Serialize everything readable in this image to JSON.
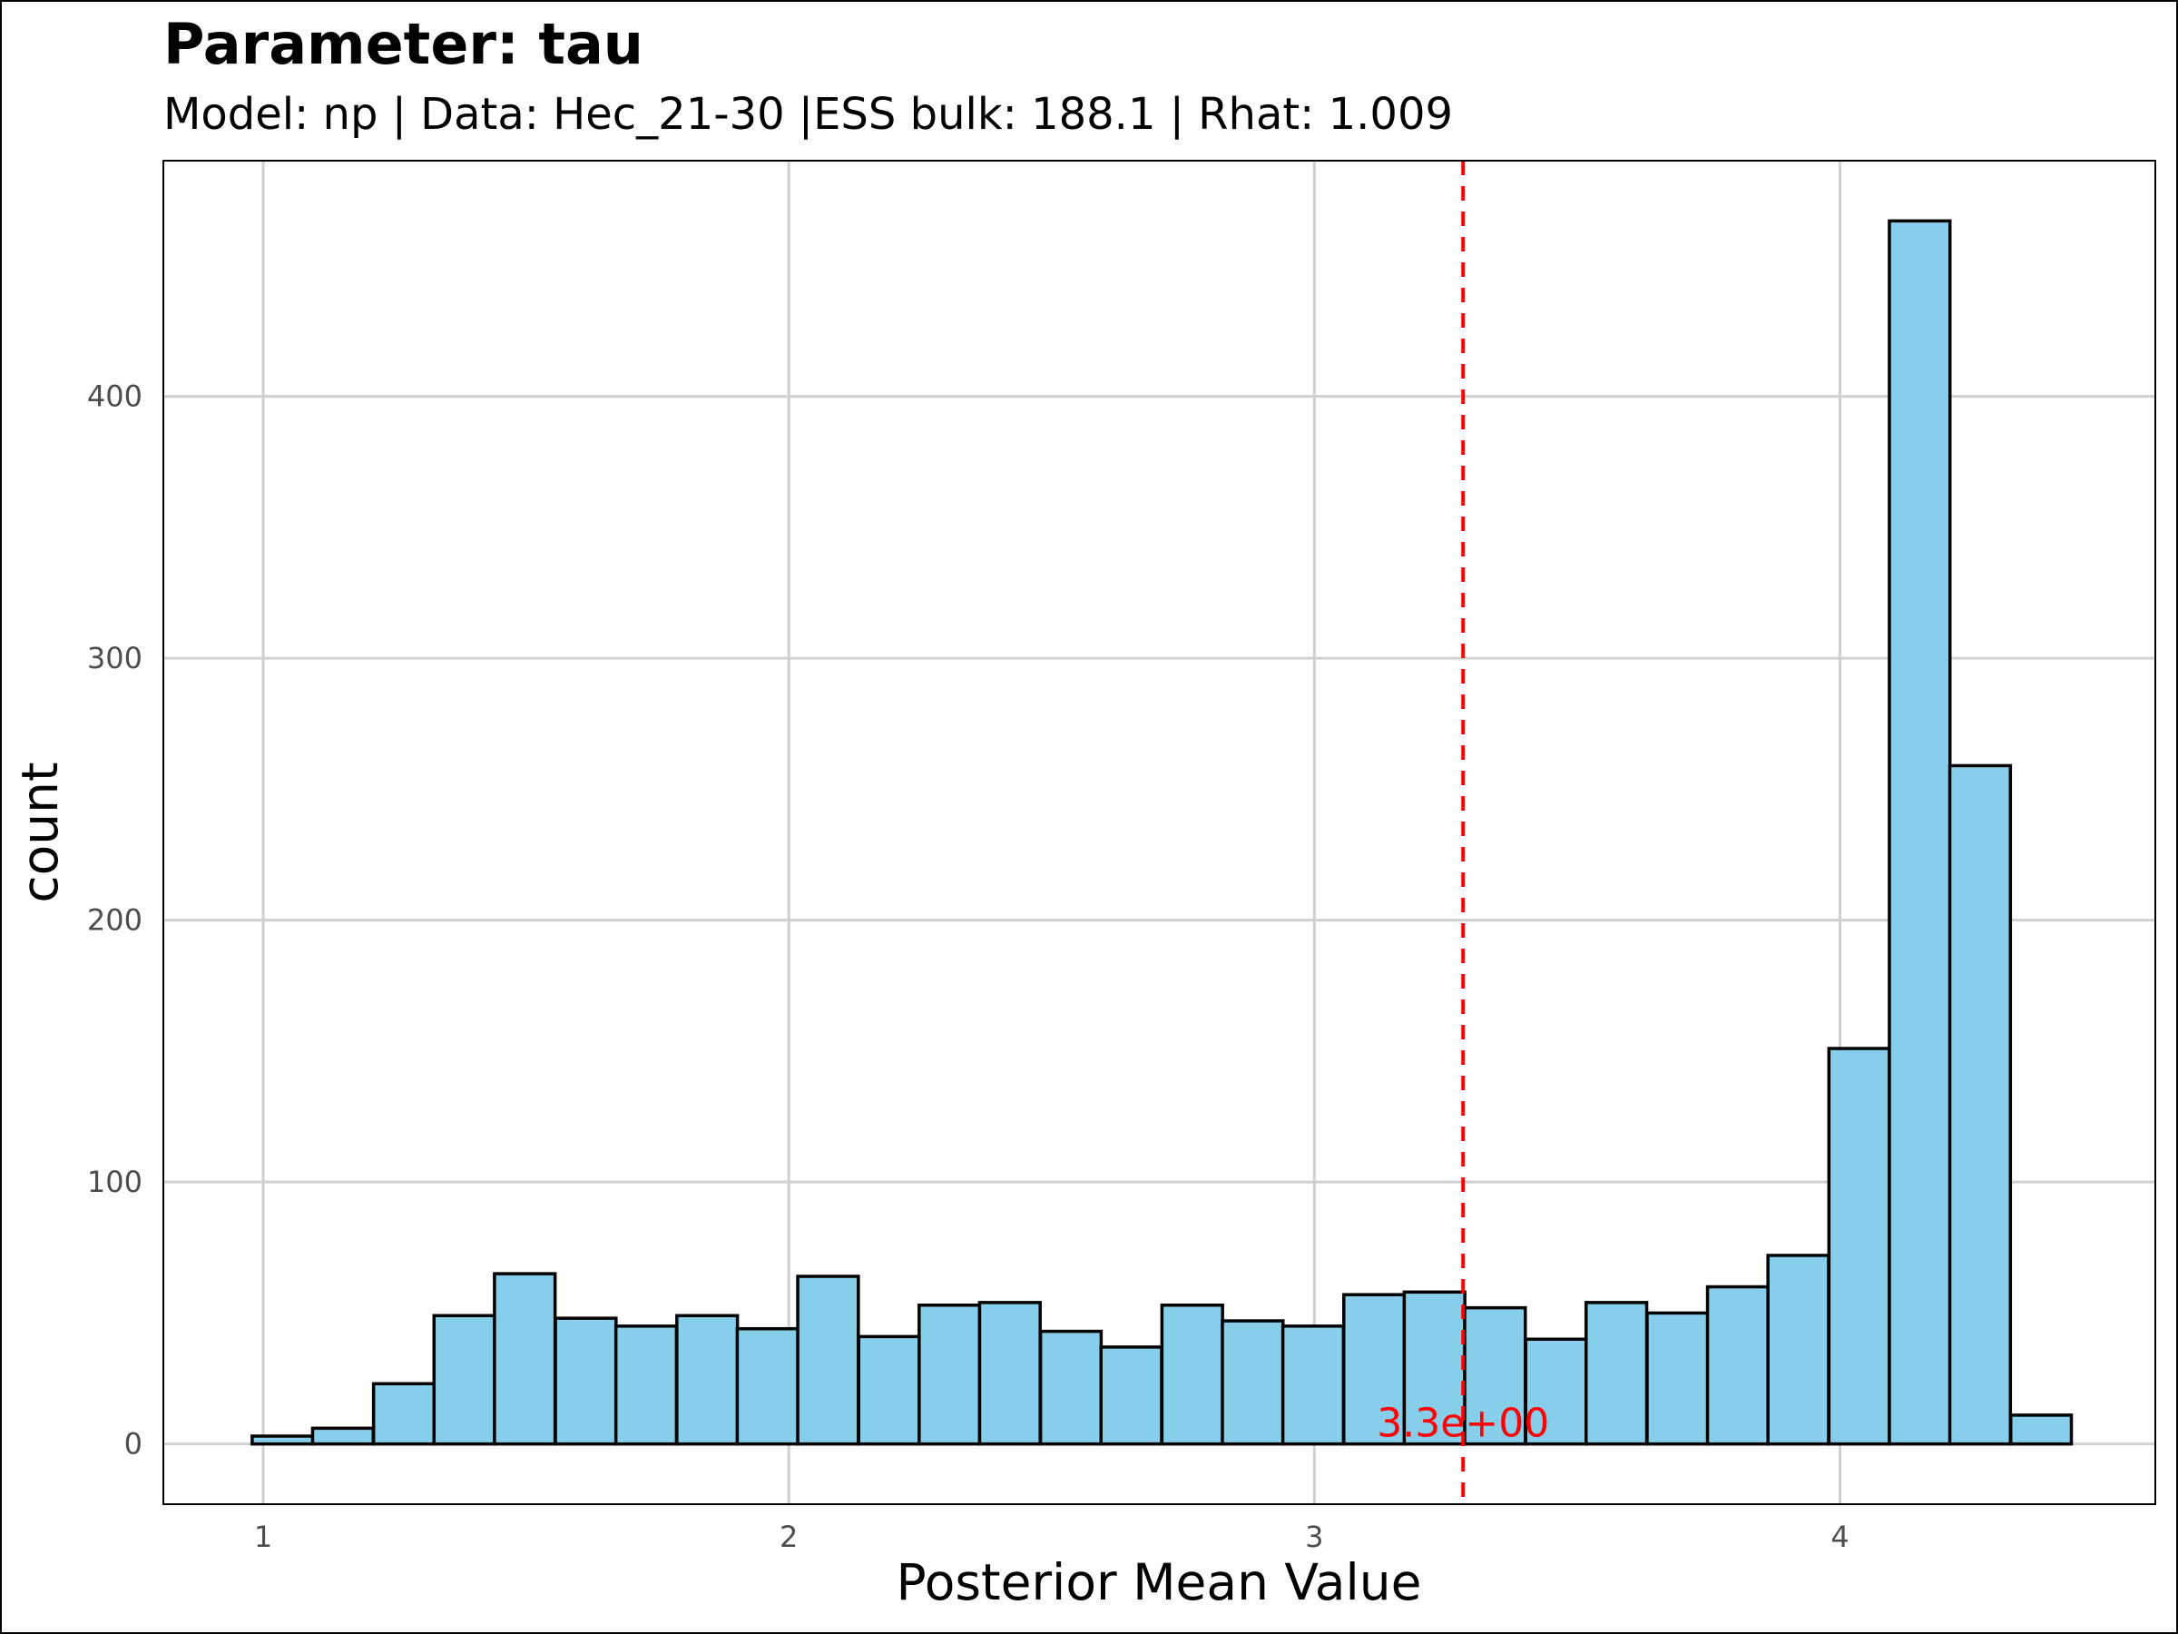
{
  "chart_data": {
    "type": "bar",
    "title": "Parameter: tau",
    "subtitle": "Model: np | Data: Hec_21-30 |ESS bulk: 188.1 | Rhat: 1.009",
    "xlabel": "Posterior Mean Value",
    "ylabel": "count",
    "xlim": [
      0.81,
      4.6
    ],
    "ylim": [
      -23,
      490
    ],
    "xticks": [
      1,
      2,
      3,
      4
    ],
    "yticks": [
      0,
      100,
      200,
      300,
      400
    ],
    "grid": true,
    "bar_fill": "#87CEEB",
    "bar_edge": "#000000",
    "bin_width": 0.1153,
    "bins": [
      {
        "x_start": 0.979,
        "count": 3
      },
      {
        "x_start": 1.094,
        "count": 6
      },
      {
        "x_start": 1.21,
        "count": 23
      },
      {
        "x_start": 1.325,
        "count": 49
      },
      {
        "x_start": 1.44,
        "count": 65
      },
      {
        "x_start": 1.556,
        "count": 48
      },
      {
        "x_start": 1.671,
        "count": 45
      },
      {
        "x_start": 1.787,
        "count": 49
      },
      {
        "x_start": 1.902,
        "count": 44
      },
      {
        "x_start": 2.017,
        "count": 64
      },
      {
        "x_start": 2.133,
        "count": 41
      },
      {
        "x_start": 2.248,
        "count": 53
      },
      {
        "x_start": 2.363,
        "count": 54
      },
      {
        "x_start": 2.479,
        "count": 43
      },
      {
        "x_start": 2.594,
        "count": 37
      },
      {
        "x_start": 2.71,
        "count": 53
      },
      {
        "x_start": 2.825,
        "count": 47
      },
      {
        "x_start": 2.94,
        "count": 45
      },
      {
        "x_start": 3.056,
        "count": 57
      },
      {
        "x_start": 3.171,
        "count": 58
      },
      {
        "x_start": 3.286,
        "count": 52
      },
      {
        "x_start": 3.402,
        "count": 40
      },
      {
        "x_start": 3.517,
        "count": 54
      },
      {
        "x_start": 3.633,
        "count": 50
      },
      {
        "x_start": 3.748,
        "count": 60
      },
      {
        "x_start": 3.863,
        "count": 72
      },
      {
        "x_start": 3.979,
        "count": 151
      },
      {
        "x_start": 4.094,
        "count": 467
      },
      {
        "x_start": 4.209,
        "count": 259
      },
      {
        "x_start": 4.325,
        "count": 11
      }
    ],
    "reference_line": {
      "x": 3.283,
      "label": "3.3e+00",
      "color": "#ff0000",
      "style": "dashed"
    }
  }
}
